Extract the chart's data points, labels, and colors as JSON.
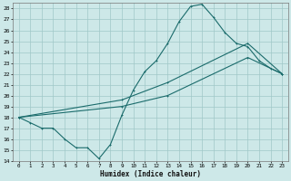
{
  "bg_color": "#cde8e8",
  "grid_color": "#a0c8c8",
  "line_color": "#1a6b6b",
  "xlabel": "Humidex (Indice chaleur)",
  "xlim": [
    -0.5,
    23.5
  ],
  "ylim": [
    14,
    28.5
  ],
  "xticks": [
    0,
    1,
    2,
    3,
    4,
    5,
    6,
    7,
    8,
    9,
    10,
    11,
    12,
    13,
    14,
    15,
    16,
    17,
    18,
    19,
    20,
    21,
    22,
    23
  ],
  "yticks": [
    14,
    15,
    16,
    17,
    18,
    19,
    20,
    21,
    22,
    23,
    24,
    25,
    26,
    27,
    28
  ],
  "line1_x": [
    0,
    1,
    2,
    3,
    4,
    5,
    6,
    7,
    8,
    9,
    10,
    11,
    12,
    13,
    14,
    15,
    16,
    17,
    18,
    19,
    20,
    21,
    22,
    23
  ],
  "line1_y": [
    18,
    17.5,
    17,
    17,
    16,
    15.2,
    15.2,
    14.2,
    15.5,
    18.2,
    20.5,
    22.2,
    23.2,
    24.8,
    26.8,
    28.2,
    28.4,
    27.2,
    25.8,
    24.8,
    24.5,
    23.2,
    22.5,
    22.0
  ],
  "line2_x": [
    0,
    9,
    13,
    20,
    23
  ],
  "line2_y": [
    18,
    19.6,
    21.2,
    24.8,
    22.0
  ],
  "line3_x": [
    0,
    9,
    13,
    20,
    23
  ],
  "line3_y": [
    18,
    19.0,
    20.0,
    23.5,
    22.0
  ]
}
